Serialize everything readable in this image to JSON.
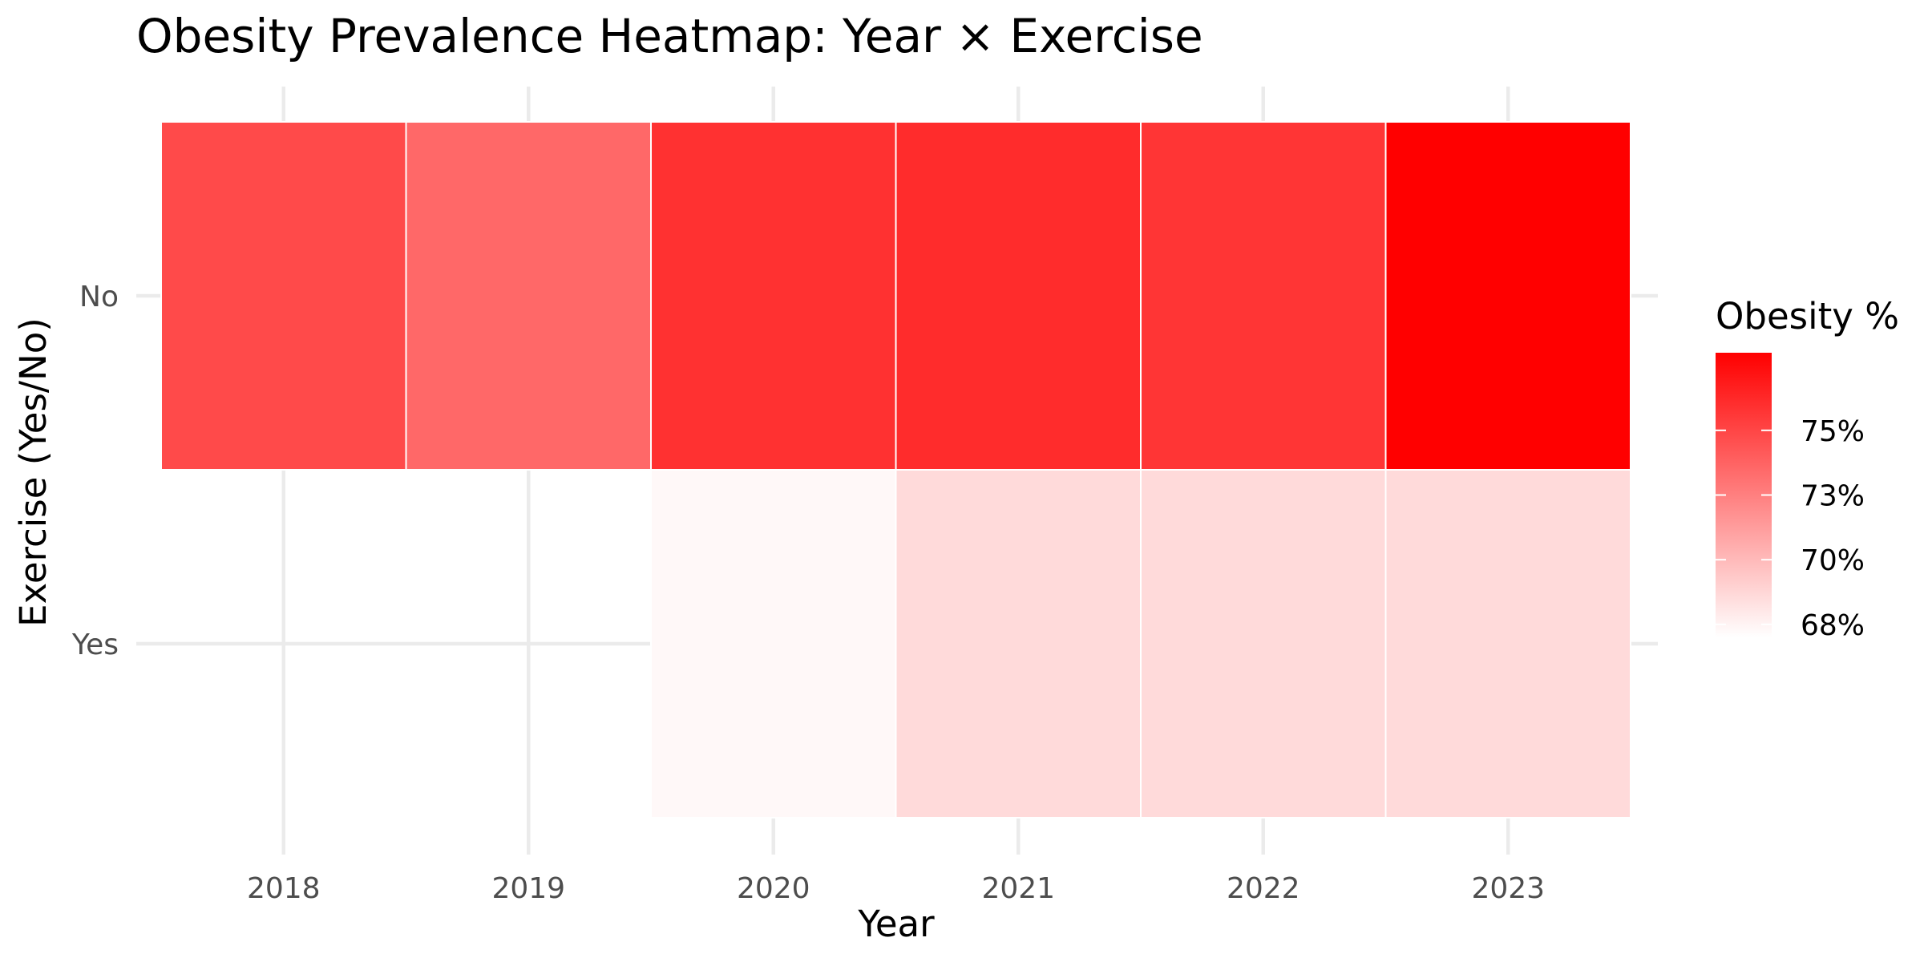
{
  "chart_data": {
    "type": "heatmap",
    "title": "Obesity Prevalence Heatmap: Year × Exercise",
    "xlabel": "Year",
    "ylabel": "Exercise (Yes/No)",
    "x_categories": [
      "2018",
      "2019",
      "2020",
      "2021",
      "2022",
      "2023"
    ],
    "y_categories": [
      "No",
      "Yes"
    ],
    "cells": [
      {
        "x": "2018",
        "y": "No",
        "value": 74.8
      },
      {
        "x": "2019",
        "y": "No",
        "value": 73.5
      },
      {
        "x": "2020",
        "y": "No",
        "value": 75.9
      },
      {
        "x": "2021",
        "y": "No",
        "value": 76.1
      },
      {
        "x": "2022",
        "y": "No",
        "value": 75.7
      },
      {
        "x": "2023",
        "y": "No",
        "value": 78.0
      },
      {
        "x": "2018",
        "y": "Yes",
        "value": null
      },
      {
        "x": "2019",
        "y": "Yes",
        "value": null
      },
      {
        "x": "2020",
        "y": "Yes",
        "value": 67.3
      },
      {
        "x": "2021",
        "y": "Yes",
        "value": 68.6
      },
      {
        "x": "2022",
        "y": "Yes",
        "value": 68.6
      },
      {
        "x": "2023",
        "y": "Yes",
        "value": 68.6
      }
    ],
    "legend": {
      "title": "Obesity %",
      "position": "right",
      "ticks": [
        {
          "value": 75,
          "label": "75%"
        },
        {
          "value": 72.5,
          "label": "73%"
        },
        {
          "value": 70,
          "label": "70%"
        },
        {
          "value": 67.5,
          "label": "68%"
        }
      ],
      "range": [
        67.0,
        78.0
      ]
    },
    "colors": {
      "low": "#ffffff",
      "high": "#ff0000"
    },
    "grid": true
  }
}
